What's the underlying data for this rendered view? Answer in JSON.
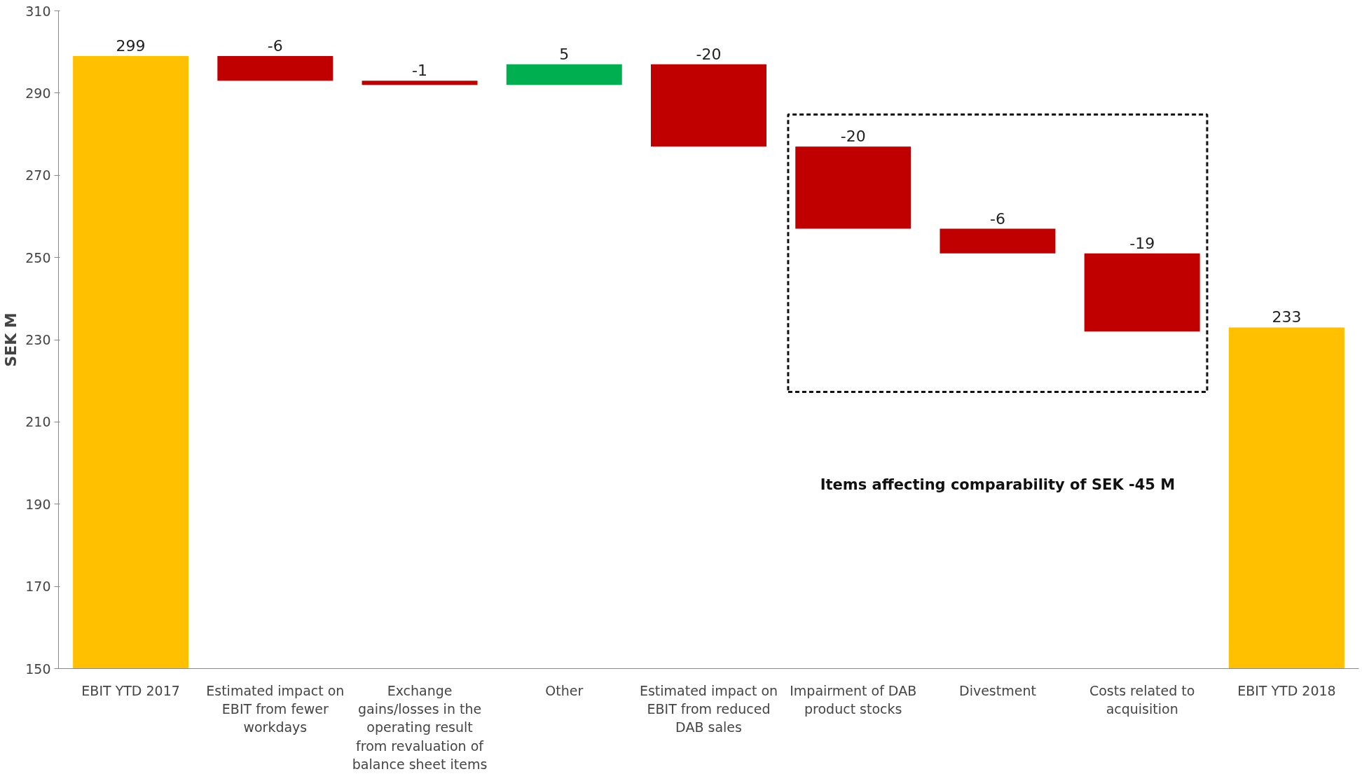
{
  "chart_data": {
    "type": "bar",
    "ylabel": "SEK M",
    "categories": [
      "EBIT YTD 2017",
      "Estimated impact on EBIT from fewer workdays",
      "Exchange gains/losses in the operating result from revaluation of balance sheet items",
      "Other",
      "Estimated impact on EBIT from reduced DAB sales",
      "Impairment of DAB product stocks",
      "Divestment",
      "Costs related to acquisition",
      "EBIT YTD 2018"
    ],
    "values": [
      299,
      -6,
      -1,
      5,
      -20,
      -20,
      -6,
      -19,
      233
    ],
    "base": [
      0,
      299,
      293,
      292,
      297,
      277,
      257,
      251,
      0
    ],
    "colors": [
      "#ffc000",
      "#c00000",
      "#c00000",
      "#00b050",
      "#c00000",
      "#c00000",
      "#c00000",
      "#c00000",
      "#ffc000"
    ],
    "ylim": [
      150,
      310
    ],
    "yticks": [
      150,
      170,
      190,
      210,
      230,
      250,
      270,
      290,
      310
    ],
    "data_labels": true,
    "grid": false,
    "annotations": [
      "Items affecting comparability of SEK -45 M"
    ]
  }
}
